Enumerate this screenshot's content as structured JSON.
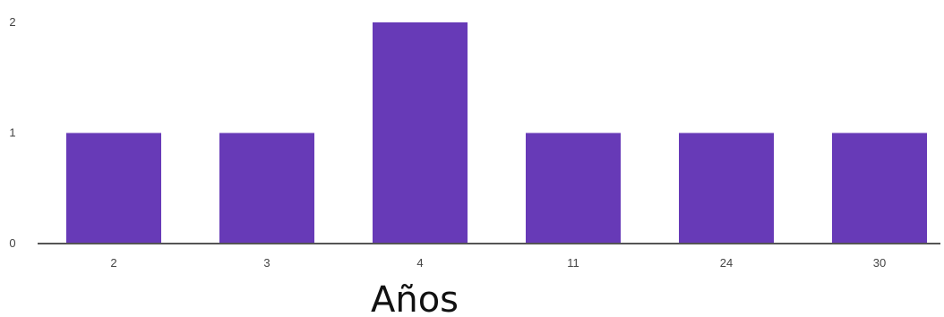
{
  "chart_data": {
    "type": "bar",
    "categories": [
      "2",
      "3",
      "4",
      "11",
      "24",
      "30"
    ],
    "values": [
      1,
      1,
      2,
      1,
      1,
      1
    ],
    "xlabel": "Años",
    "ylabel": "",
    "ylim": [
      0,
      2
    ],
    "yticks": [
      "0",
      "1",
      "2"
    ],
    "grid": false,
    "legend": "none",
    "colors": {
      "bar": "#673ab7",
      "axis": "#555555"
    }
  }
}
